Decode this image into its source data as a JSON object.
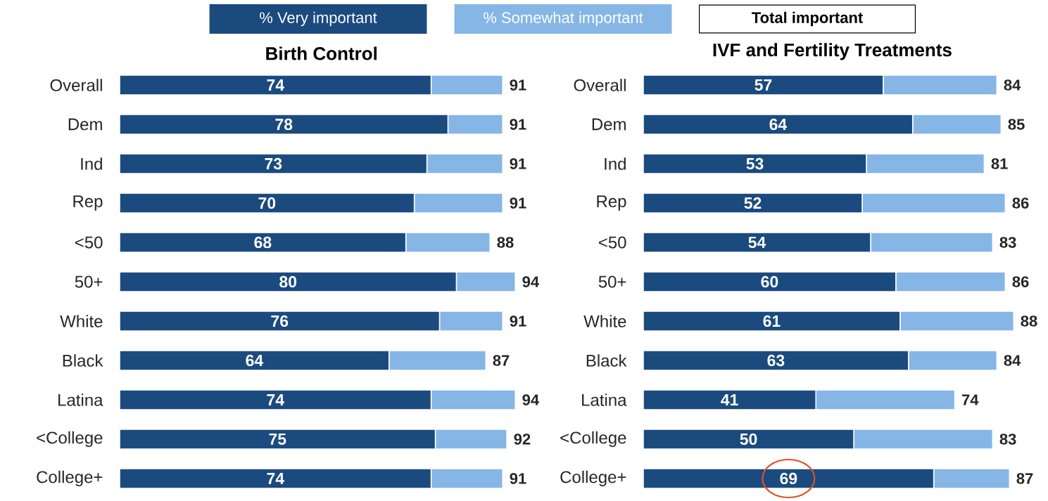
{
  "chart_data": [
    {
      "type": "bar",
      "orientation": "horizontal",
      "stacked": true,
      "title": "Birth Control",
      "legend": "top",
      "annotations": [
        "Total important"
      ],
      "categories": [
        "Overall",
        "Dem",
        "Ind",
        "Rep",
        "<50",
        "50+",
        "White",
        "Black",
        "Latina",
        "<College",
        "College+"
      ],
      "series": [
        {
          "name": "% Very important",
          "color": "#1b4a7e",
          "values": [
            74,
            78,
            73,
            70,
            68,
            80,
            76,
            64,
            74,
            75,
            74
          ],
          "value_labels": [
            "74",
            "78",
            "73",
            "70",
            "68",
            "80",
            "76",
            "64",
            "74",
            "75",
            "74"
          ]
        },
        {
          "name": "% Somewhat important",
          "color": "#86b6e6",
          "values": [
            17,
            13,
            18,
            21,
            20,
            14,
            15,
            23,
            20,
            17,
            17
          ]
        }
      ],
      "totals": [
        "91",
        "91",
        "91",
        "91",
        "88",
        "94",
        "91",
        "87",
        "94",
        "92",
        "91"
      ]
    },
    {
      "type": "bar",
      "orientation": "horizontal",
      "stacked": true,
      "title": "IVF and Fertility Treatments",
      "categories": [
        "Overall",
        "Dem",
        "Ind",
        "Rep",
        "<50",
        "50+",
        "White",
        "Black",
        "Latina",
        "<College",
        "College+"
      ],
      "series": [
        {
          "color": "#1b4a7e",
          "values": [
            57,
            64,
            53,
            52,
            54,
            60,
            61,
            63,
            41,
            50,
            69
          ],
          "value_labels": [
            "57",
            "64",
            "53",
            "52",
            "54",
            "60",
            "61",
            "63",
            "41",
            "50",
            "69"
          ]
        },
        {
          "color": "#86b6e6",
          "values": [
            27,
            21,
            28,
            34,
            29,
            26,
            27,
            21,
            33,
            33,
            18
          ]
        }
      ],
      "totals": [
        "84",
        "85",
        "81",
        "86",
        "83",
        "86",
        "88",
        "84",
        "74",
        "83",
        "87"
      ]
    }
  ]
}
